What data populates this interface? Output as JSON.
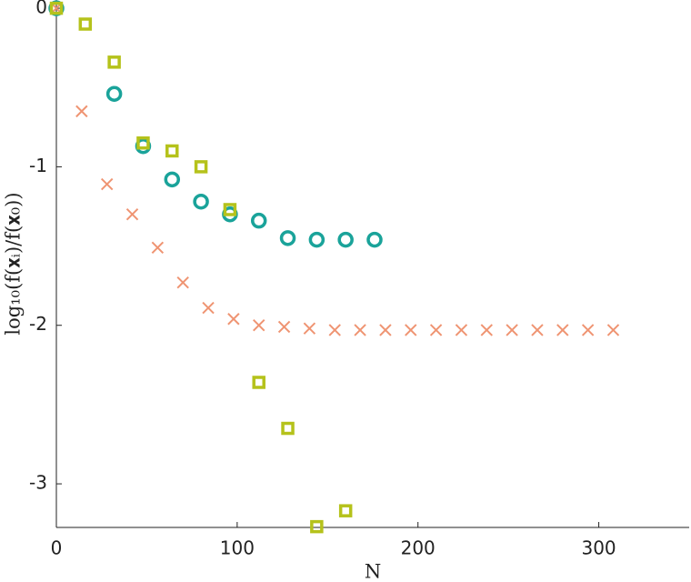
{
  "chart_data": {
    "type": "scatter",
    "xlabel": "N",
    "ylabel": "log₁₀(f(𝐱ᵢ)/f(𝐱₀))",
    "xlim": [
      0,
      350
    ],
    "ylim": [
      -3.275,
      0.052
    ],
    "xticks": [
      0,
      100,
      200,
      300
    ],
    "yticks": [
      -3,
      -2,
      -1,
      0
    ],
    "series": [
      {
        "marker": "x",
        "color": "#ef9472",
        "x": [
          0,
          14,
          28,
          42,
          56,
          70,
          84,
          98,
          112,
          126,
          140,
          154,
          168,
          182,
          196,
          210,
          224,
          238,
          252,
          266,
          280,
          294,
          308
        ],
        "values": [
          0,
          -0.65,
          -1.11,
          -1.3,
          -1.51,
          -1.73,
          -1.89,
          -1.96,
          -2.0,
          -2.01,
          -2.02,
          -2.03,
          -2.03,
          -2.03,
          -2.03,
          -2.03,
          -2.03,
          -2.03,
          -2.03,
          -2.03,
          -2.03,
          -2.03,
          -2.03
        ]
      },
      {
        "marker": "o",
        "color": "#1aa39a",
        "x": [
          0,
          32,
          48,
          64,
          80,
          96,
          112,
          128,
          144,
          160,
          176
        ],
        "values": [
          0,
          -0.54,
          -0.87,
          -1.08,
          -1.22,
          -1.3,
          -1.34,
          -1.45,
          -1.46,
          -1.46,
          -1.46
        ]
      },
      {
        "marker": "s",
        "color": "#b5c21b",
        "x": [
          0,
          16,
          32,
          48,
          64,
          80,
          96,
          112,
          128,
          144,
          160
        ],
        "values": [
          0,
          -0.1,
          -0.34,
          -0.85,
          -0.9,
          -1.0,
          -1.27,
          -2.36,
          -2.65,
          -3.27,
          -3.17
        ]
      }
    ]
  }
}
